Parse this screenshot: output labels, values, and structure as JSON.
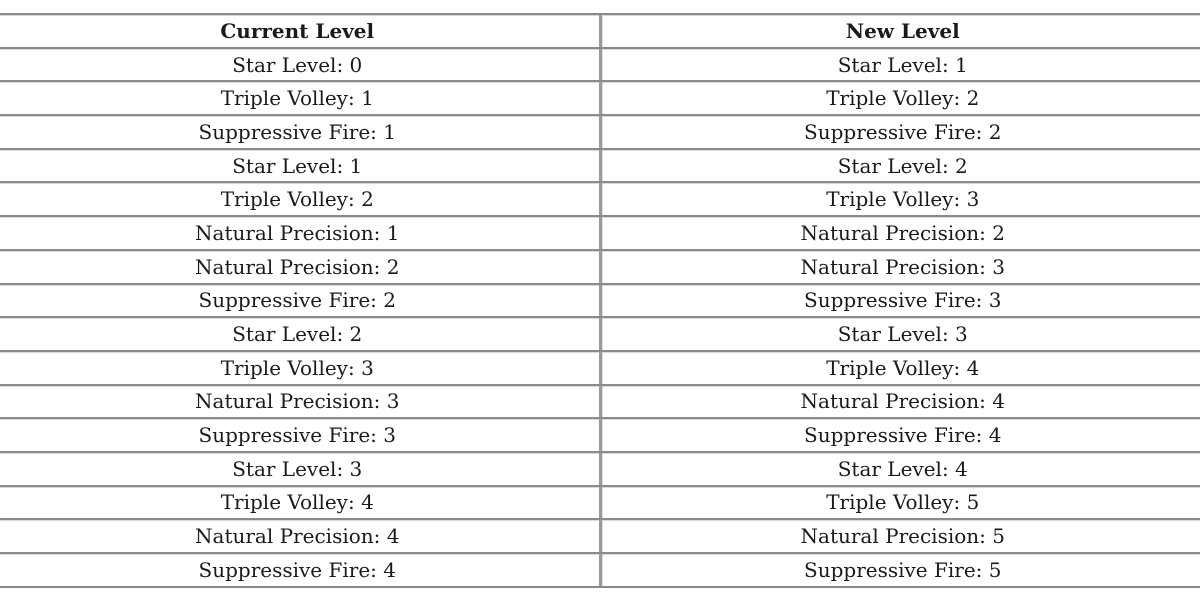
{
  "table": {
    "headers": [
      "Current Level",
      "New Level"
    ],
    "rows": [
      [
        "Star Level: 0",
        "Star Level: 1"
      ],
      [
        "Triple Volley: 1",
        "Triple Volley: 2"
      ],
      [
        "Suppressive Fire: 1",
        "Suppressive Fire: 2"
      ],
      [
        "Star Level: 1",
        "Star Level: 2"
      ],
      [
        "Triple Volley: 2",
        "Triple Volley: 3"
      ],
      [
        "Natural Precision: 1",
        "Natural Precision: 2"
      ],
      [
        "Natural Precision: 2",
        "Natural Precision: 3"
      ],
      [
        "Suppressive Fire: 2",
        "Suppressive Fire: 3"
      ],
      [
        "Star Level: 2",
        "Star Level: 3"
      ],
      [
        "Triple Volley: 3",
        "Triple Volley: 4"
      ],
      [
        "Natural Precision: 3",
        "Natural Precision: 4"
      ],
      [
        "Suppressive Fire: 3",
        "Suppressive Fire: 4"
      ],
      [
        "Star Level: 3",
        "Star Level: 4"
      ],
      [
        "Triple Volley: 4",
        "Triple Volley: 5"
      ],
      [
        "Natural Precision: 4",
        "Natural Precision: 5"
      ],
      [
        "Suppressive Fire: 4",
        "Suppressive Fire: 5"
      ]
    ]
  }
}
